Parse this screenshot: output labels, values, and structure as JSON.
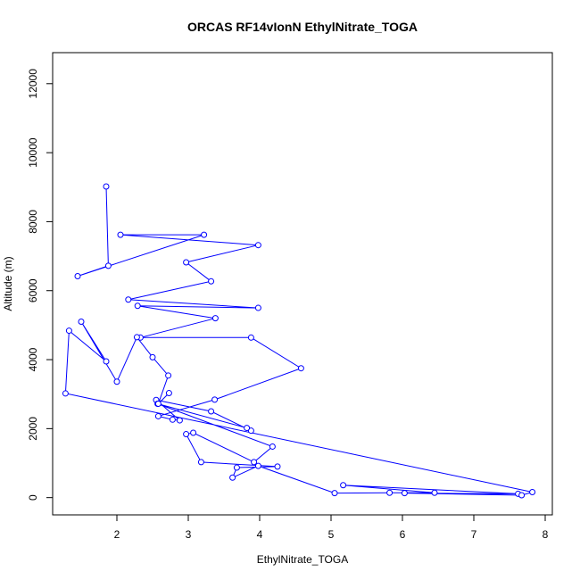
{
  "chart_data": {
    "type": "scatter",
    "title": "ORCAS RF14vIonN EthylNitrate_TOGA",
    "xlabel": "EthylNitrate_TOGA",
    "ylabel": "Altitude (m)",
    "xlim": [
      1.1,
      8.1
    ],
    "ylim": [
      -500,
      12900
    ],
    "xticks": [
      2,
      3,
      4,
      5,
      6,
      7,
      8
    ],
    "yticks": [
      0,
      2000,
      4000,
      6000,
      8000,
      10000,
      12000
    ],
    "grid": false,
    "line_color": "#0000ff",
    "marker_color": "#0000ff",
    "series": [
      {
        "x": [
          1.85,
          1.88,
          1.45,
          3.22,
          2.05,
          3.98,
          2.97,
          3.32,
          2.16,
          3.98,
          2.29,
          3.38,
          2.33,
          3.88,
          4.58,
          3.37,
          2.58,
          2.78,
          2.88,
          2.55,
          3.32,
          3.88,
          3.82,
          2.57,
          4.18,
          3.92,
          3.07,
          2.97,
          3.18,
          4.25,
          3.68,
          3.62,
          3.98,
          5.05,
          5.82,
          6.45,
          5.17,
          7.62,
          6.03,
          7.67,
          7.82,
          1.28,
          1.33,
          1.85,
          1.5,
          2.0,
          2.28,
          2.5,
          2.72,
          2.58,
          2.73
        ],
        "y": [
          9020,
          6720,
          6420,
          7620,
          7620,
          7320,
          6820,
          6270,
          5740,
          5500,
          5560,
          5200,
          4640,
          4640,
          3750,
          2840,
          2360,
          2260,
          2240,
          2830,
          2500,
          1940,
          2020,
          2720,
          1480,
          1030,
          1880,
          1840,
          1030,
          900,
          870,
          580,
          920,
          130,
          140,
          140,
          360,
          110,
          130,
          70,
          160,
          3020,
          4840,
          3950,
          5100,
          3360,
          4650,
          4070,
          3540,
          2720,
          3030
        ]
      }
    ],
    "x_tick_labels": [
      "2",
      "3",
      "4",
      "5",
      "6",
      "7",
      "8"
    ],
    "y_tick_labels": [
      "0",
      "2000",
      "4000",
      "6000",
      "8000",
      "10000",
      "12000"
    ]
  }
}
